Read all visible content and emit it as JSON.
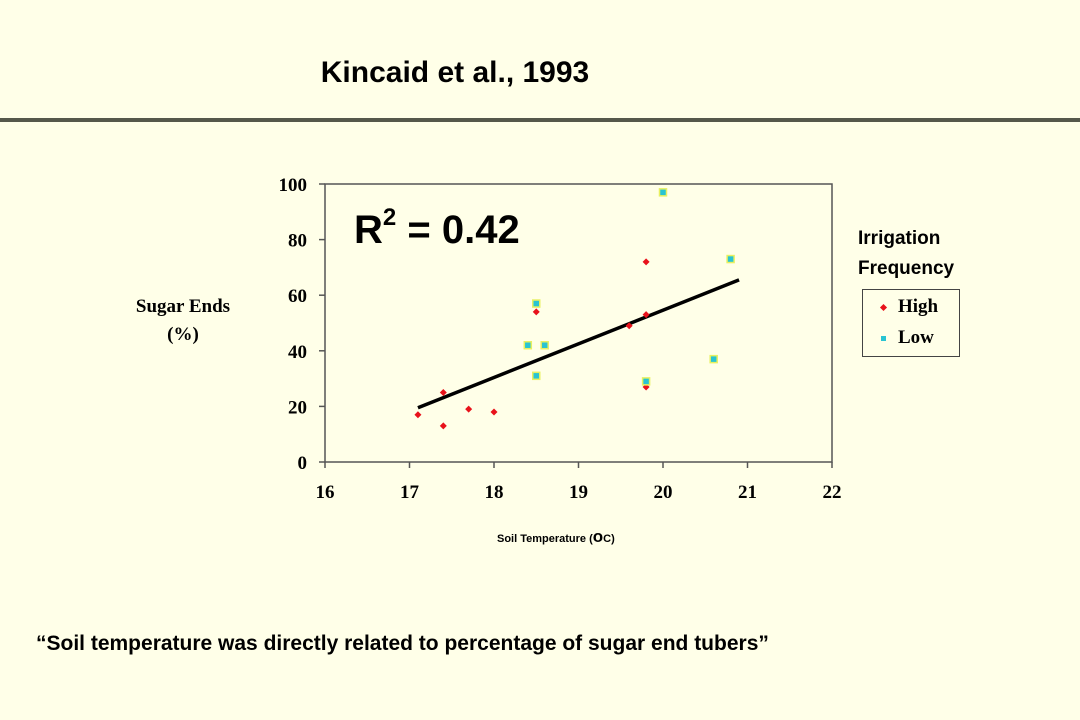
{
  "slide": {
    "title": "Kincaid et al., 1993",
    "r2_base": "R",
    "r2_sup": "2",
    "r2_rest": " = 0.42",
    "legend_title_line1": "Irrigation",
    "legend_title_line2": "Frequency",
    "quote": "“Soil temperature was directly related to percentage of sugar end tubers”"
  },
  "chart_data": {
    "type": "scatter",
    "ylabel_line1": "Sugar Ends",
    "ylabel_line2": "(%)",
    "xlabel": "Soil Temperature (",
    "xlabel_unit_o": "o",
    "xlabel_unit_c": "C)",
    "xlim": [
      16,
      22
    ],
    "ylim": [
      0,
      100
    ],
    "x_ticks": [
      16,
      17,
      18,
      19,
      20,
      21,
      22
    ],
    "y_ticks": [
      0,
      20,
      40,
      60,
      80,
      100
    ],
    "grid": false,
    "legend_position": "right",
    "series": [
      {
        "name": "High",
        "color": "#e8121b",
        "marker": "diamond",
        "points": [
          [
            17.1,
            17
          ],
          [
            17.4,
            25
          ],
          [
            17.4,
            13
          ],
          [
            17.7,
            19
          ],
          [
            18.0,
            18
          ],
          [
            18.5,
            54
          ],
          [
            19.6,
            49
          ],
          [
            19.8,
            53
          ],
          [
            19.8,
            72
          ],
          [
            19.8,
            27
          ]
        ]
      },
      {
        "name": "Low",
        "color": "#29c4d2",
        "border": "#e8f060",
        "marker": "square",
        "points": [
          [
            18.4,
            42
          ],
          [
            18.5,
            57
          ],
          [
            18.5,
            31
          ],
          [
            18.6,
            42
          ],
          [
            19.8,
            29
          ],
          [
            20.0,
            97
          ],
          [
            20.6,
            37
          ],
          [
            20.8,
            73
          ]
        ]
      }
    ],
    "trendline": {
      "x": [
        17.1,
        20.9
      ],
      "y": [
        19.5,
        65.5
      ],
      "color": "#000000"
    },
    "r_squared": 0.42
  }
}
